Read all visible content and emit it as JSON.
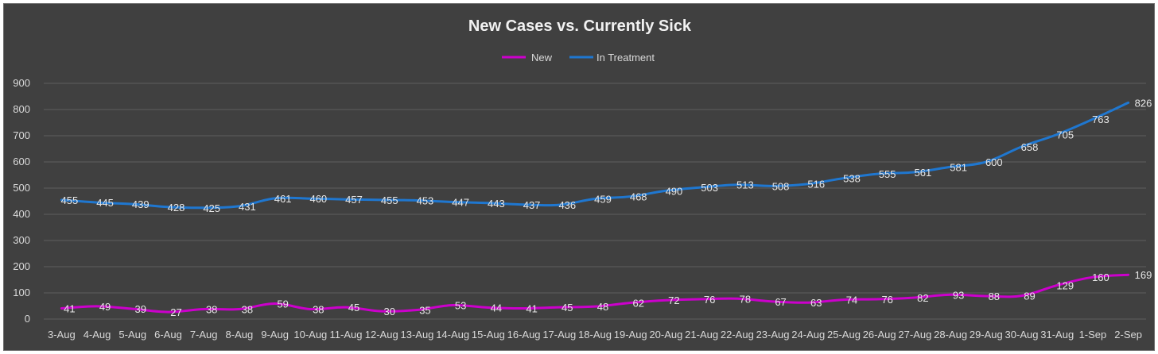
{
  "chart_data": {
    "type": "line",
    "title": "New Cases vs. Currently Sick",
    "xlabel": "",
    "ylabel": "",
    "ylim": [
      0,
      900
    ],
    "yticks": [
      0,
      100,
      200,
      300,
      400,
      500,
      600,
      700,
      800,
      900
    ],
    "grid": true,
    "legend_position": "top",
    "categories": [
      "3-Aug",
      "4-Aug",
      "5-Aug",
      "6-Aug",
      "7-Aug",
      "8-Aug",
      "9-Aug",
      "10-Aug",
      "11-Aug",
      "12-Aug",
      "13-Aug",
      "14-Aug",
      "15-Aug",
      "16-Aug",
      "17-Aug",
      "18-Aug",
      "19-Aug",
      "20-Aug",
      "21-Aug",
      "22-Aug",
      "23-Aug",
      "24-Aug",
      "25-Aug",
      "26-Aug",
      "27-Aug",
      "28-Aug",
      "29-Aug",
      "30-Aug",
      "31-Aug",
      "1-Sep",
      "2-Sep"
    ],
    "series": [
      {
        "name": "New",
        "color": "#cc00cc",
        "values": [
          41,
          49,
          39,
          27,
          38,
          38,
          59,
          38,
          45,
          30,
          35,
          53,
          44,
          41,
          45,
          48,
          62,
          72,
          76,
          78,
          67,
          63,
          74,
          76,
          82,
          93,
          88,
          89,
          129,
          160,
          169
        ]
      },
      {
        "name": "In Treatment",
        "color": "#1f77d0",
        "values": [
          455,
          445,
          439,
          428,
          425,
          431,
          461,
          460,
          457,
          455,
          453,
          447,
          443,
          437,
          436,
          459,
          468,
          490,
          503,
          513,
          508,
          516,
          538,
          555,
          561,
          581,
          600,
          658,
          705,
          763,
          826
        ]
      }
    ]
  }
}
